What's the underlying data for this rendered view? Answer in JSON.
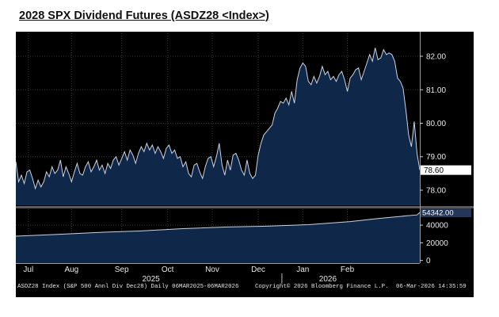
{
  "title": "2028 SPX Dividend Futures (ASDZ28 <Index>)",
  "chart_data": {
    "type": "area",
    "colors": {
      "background": "#000000",
      "fill": "#0f2749",
      "line": "#c9d3e2",
      "grid": "#3a3a3a",
      "badge_bg": "#ffffff",
      "badge_text": "#000000",
      "badge2_bg": "#24365a",
      "badge2_text": "#ffffff"
    },
    "upper": {
      "ylim": [
        77.55,
        82.45
      ],
      "yticks": [
        "82.00",
        "81.00",
        "80.00",
        "79.00",
        "78.00"
      ],
      "last_value": "78.60",
      "points": [
        [
          0,
          78.85
        ],
        [
          2,
          78.25
        ],
        [
          4,
          78.45
        ],
        [
          6,
          78.2
        ],
        [
          8,
          78.55
        ],
        [
          10,
          78.6
        ],
        [
          12,
          78.35
        ],
        [
          14,
          78.05
        ],
        [
          16,
          78.3
        ],
        [
          18,
          78.1
        ],
        [
          20,
          78.25
        ],
        [
          22,
          78.55
        ],
        [
          24,
          78.4
        ],
        [
          26,
          78.7
        ],
        [
          28,
          78.5
        ],
        [
          30,
          78.6
        ],
        [
          32,
          78.9
        ],
        [
          34,
          78.4
        ],
        [
          36,
          78.7
        ],
        [
          38,
          78.5
        ],
        [
          40,
          78.25
        ],
        [
          42,
          78.55
        ],
        [
          44,
          78.8
        ],
        [
          46,
          78.5
        ],
        [
          48,
          78.45
        ],
        [
          50,
          78.7
        ],
        [
          52,
          78.85
        ],
        [
          54,
          78.55
        ],
        [
          56,
          78.7
        ],
        [
          58,
          78.9
        ],
        [
          60,
          78.6
        ],
        [
          62,
          78.75
        ],
        [
          64,
          78.5
        ],
        [
          66,
          78.8
        ],
        [
          68,
          78.65
        ],
        [
          70,
          78.9
        ],
        [
          72,
          79.0
        ],
        [
          74,
          78.75
        ],
        [
          76,
          78.95
        ],
        [
          78,
          79.15
        ],
        [
          80,
          78.9
        ],
        [
          82,
          79.2
        ],
        [
          84,
          79.05
        ],
        [
          86,
          78.8
        ],
        [
          88,
          79.1
        ],
        [
          90,
          79.3
        ],
        [
          92,
          79.15
        ],
        [
          94,
          79.4
        ],
        [
          96,
          79.2
        ],
        [
          98,
          79.35
        ],
        [
          100,
          79.1
        ],
        [
          102,
          79.3
        ],
        [
          104,
          79.15
        ],
        [
          106,
          78.95
        ],
        [
          108,
          79.25
        ],
        [
          110,
          79.35
        ],
        [
          112,
          79.1
        ],
        [
          114,
          79.2
        ],
        [
          116,
          78.95
        ],
        [
          118,
          79.0
        ],
        [
          120,
          78.7
        ],
        [
          122,
          78.85
        ],
        [
          124,
          78.5
        ],
        [
          126,
          78.4
        ],
        [
          128,
          78.75
        ],
        [
          130,
          78.8
        ],
        [
          132,
          78.55
        ],
        [
          134,
          78.35
        ],
        [
          136,
          78.7
        ],
        [
          138,
          78.95
        ],
        [
          140,
          79.0
        ],
        [
          142,
          78.7
        ],
        [
          144,
          79.0
        ],
        [
          146,
          79.4
        ],
        [
          148,
          78.75
        ],
        [
          150,
          78.45
        ],
        [
          152,
          78.9
        ],
        [
          154,
          78.6
        ],
        [
          156,
          79.05
        ],
        [
          158,
          79.1
        ],
        [
          160,
          78.9
        ],
        [
          162,
          78.6
        ],
        [
          164,
          78.45
        ],
        [
          166,
          78.9
        ],
        [
          168,
          78.5
        ],
        [
          170,
          78.35
        ],
        [
          172,
          78.45
        ],
        [
          174,
          79.05
        ],
        [
          176,
          79.4
        ],
        [
          178,
          79.65
        ],
        [
          180,
          79.75
        ],
        [
          182,
          79.85
        ],
        [
          184,
          79.95
        ],
        [
          186,
          80.3
        ],
        [
          188,
          80.45
        ],
        [
          190,
          80.65
        ],
        [
          192,
          80.6
        ],
        [
          194,
          80.75
        ],
        [
          196,
          80.55
        ],
        [
          198,
          80.95
        ],
        [
          200,
          80.6
        ],
        [
          202,
          81.3
        ],
        [
          204,
          81.65
        ],
        [
          206,
          81.8
        ],
        [
          208,
          81.7
        ],
        [
          210,
          81.25
        ],
        [
          212,
          81.15
        ],
        [
          214,
          81.4
        ],
        [
          216,
          81.2
        ],
        [
          218,
          81.4
        ],
        [
          220,
          81.7
        ],
        [
          222,
          81.45
        ],
        [
          224,
          81.55
        ],
        [
          226,
          81.3
        ],
        [
          228,
          81.4
        ],
        [
          230,
          81.25
        ],
        [
          232,
          81.45
        ],
        [
          234,
          81.55
        ],
        [
          236,
          81.3
        ],
        [
          238,
          80.95
        ],
        [
          240,
          81.35
        ],
        [
          242,
          81.45
        ],
        [
          244,
          81.6
        ],
        [
          246,
          81.65
        ],
        [
          248,
          81.3
        ],
        [
          250,
          81.55
        ],
        [
          252,
          81.8
        ],
        [
          254,
          82.05
        ],
        [
          256,
          81.85
        ],
        [
          258,
          82.25
        ],
        [
          260,
          81.9
        ],
        [
          262,
          81.95
        ],
        [
          264,
          82.2
        ],
        [
          266,
          82.05
        ],
        [
          268,
          82.1
        ],
        [
          270,
          82.05
        ],
        [
          272,
          81.85
        ],
        [
          274,
          81.35
        ],
        [
          276,
          81.25
        ],
        [
          278,
          81.05
        ],
        [
          280,
          80.4
        ],
        [
          282,
          79.65
        ],
        [
          284,
          79.3
        ],
        [
          286,
          80.05
        ],
        [
          288,
          79.1
        ],
        [
          290,
          78.6
        ]
      ]
    },
    "lower": {
      "ylim": [
        -3000,
        58000
      ],
      "yticks": [
        "40000",
        "20000",
        "0"
      ],
      "last_value": "54342.00",
      "points": [
        [
          0,
          27500
        ],
        [
          30,
          29500
        ],
        [
          60,
          31800
        ],
        [
          90,
          33400
        ],
        [
          120,
          36000
        ],
        [
          150,
          37800
        ],
        [
          180,
          38800
        ],
        [
          210,
          40500
        ],
        [
          240,
          44000
        ],
        [
          260,
          47500
        ],
        [
          280,
          50500
        ],
        [
          288,
          51500
        ],
        [
          290,
          54342
        ]
      ]
    },
    "xlim": [
      0,
      290
    ],
    "x_months": [
      {
        "label": "Jul",
        "x": 9
      },
      {
        "label": "Aug",
        "x": 40
      },
      {
        "label": "Sep",
        "x": 76
      },
      {
        "label": "Oct",
        "x": 109
      },
      {
        "label": "Nov",
        "x": 141
      },
      {
        "label": "Dec",
        "x": 174
      },
      {
        "label": "Jan",
        "x": 206
      },
      {
        "label": "Feb",
        "x": 238
      }
    ],
    "x_years": [
      {
        "label": "2025",
        "x": 97
      },
      {
        "label": "2026",
        "x": 224
      }
    ],
    "year_divider_x": 191
  },
  "footer": {
    "left": "ASDZ28 Index (S&P 500 Annl Div  Dec28) Daily 06MAR2025-06MAR2026",
    "middle": "Copyright© 2026 Bloomberg Finance L.P.",
    "right": "06-Mar-2026 14:35:59"
  }
}
